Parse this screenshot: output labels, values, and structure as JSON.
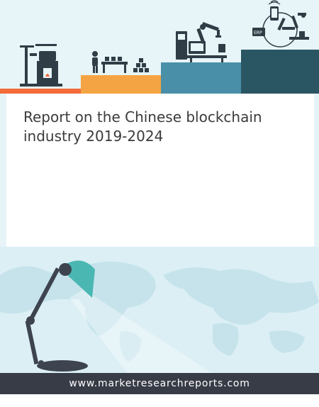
{
  "report": {
    "title": "Report on the Chinese blockchain industry 2019-2024"
  },
  "header_icons": {
    "erp_label": "ERP"
  },
  "footer": {
    "url": "www.marketresearchreports.com"
  },
  "colors": {
    "step_1": "#f26b3a",
    "step_2": "#f5a443",
    "step_3": "#4a8fa8",
    "step_4": "#2a5563",
    "footer_bg": "#383c47",
    "lamp_shade": "#4bb7b3"
  }
}
